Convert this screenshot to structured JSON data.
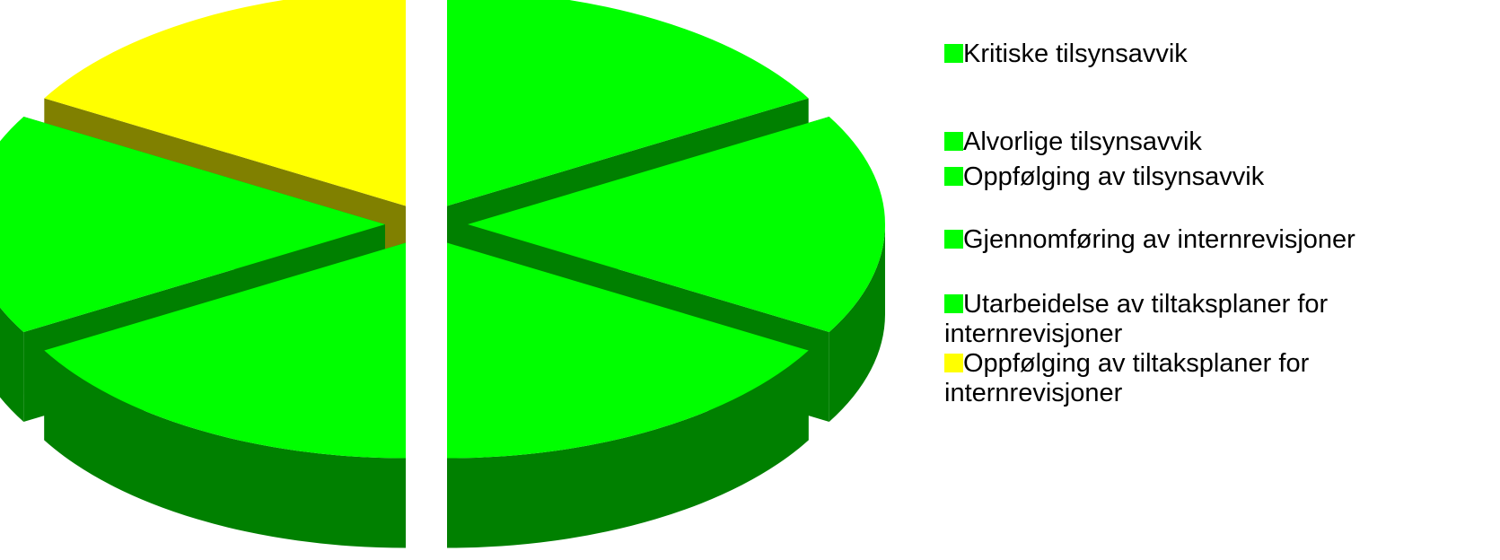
{
  "chart_data": {
    "type": "pie",
    "style": "3d-exploded",
    "title": "",
    "categories": [
      "Kritiske tilsynsavvik",
      "Alvorlige tilsynsavvik",
      "Oppfølging av tilsynsavvik",
      "Gjennomføring av internrevisjoner",
      "Utarbeidelse av tiltaksplaner for internrevisjoner",
      "Oppfølging av tiltaksplaner for internrevisjoner"
    ],
    "values": [
      1,
      1,
      1,
      1,
      1,
      1
    ],
    "colors": [
      "#00ff00",
      "#00ff00",
      "#00ff00",
      "#00ff00",
      "#00ff00",
      "#ffff00"
    ],
    "side_colors": [
      "#008000",
      "#008000",
      "#008000",
      "#008000",
      "#008000",
      "#808000"
    ],
    "legend_position": "right"
  }
}
